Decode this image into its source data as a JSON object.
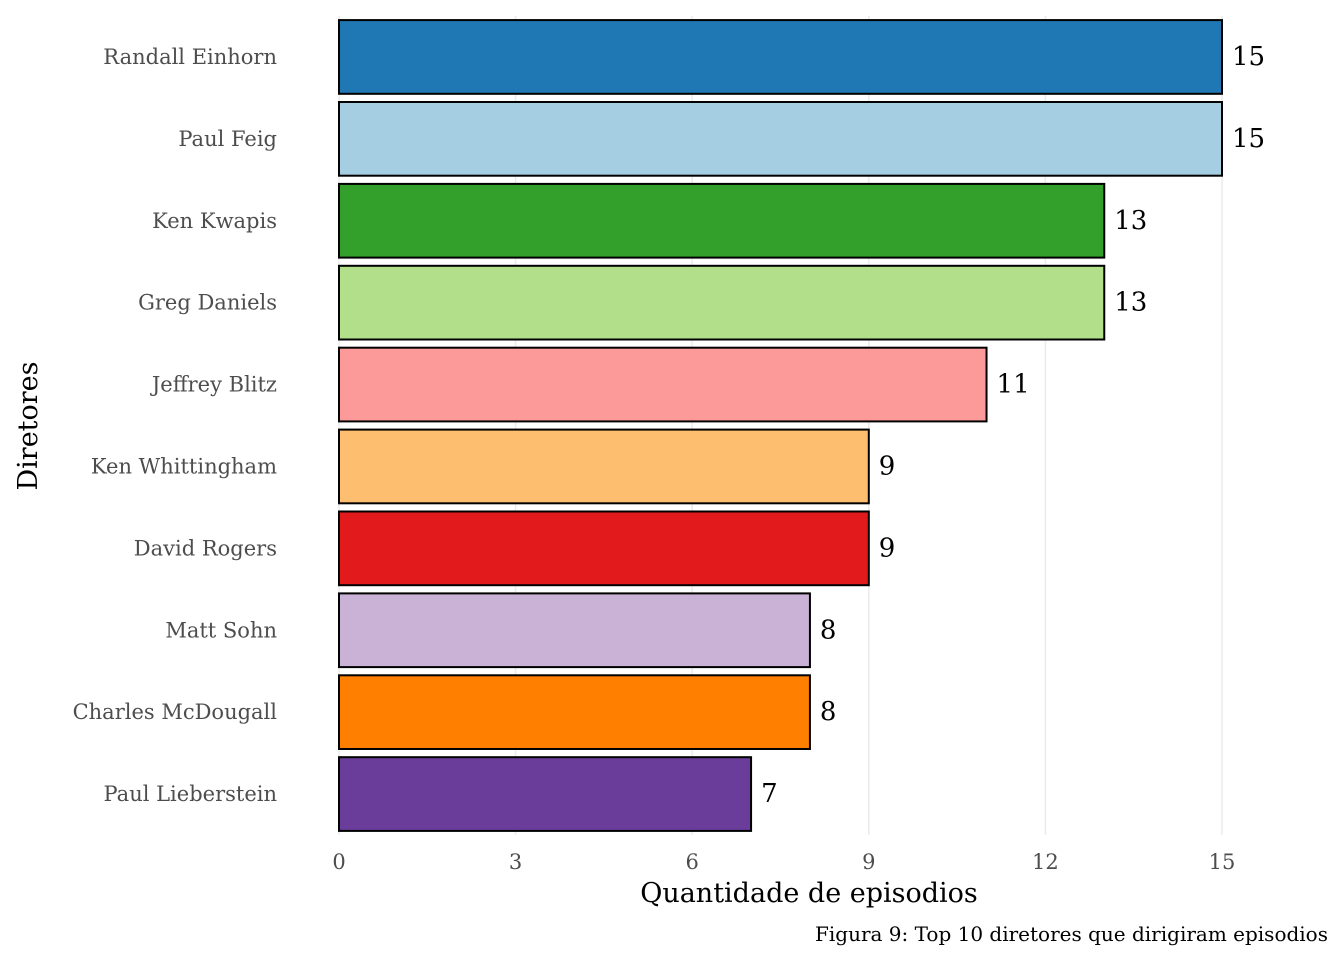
{
  "chart_data": {
    "type": "bar",
    "orientation": "horizontal",
    "categories": [
      "Randall Einhorn",
      "Paul Feig",
      "Ken Kwapis",
      "Greg Daniels",
      "Jeffrey Blitz",
      "Ken Whittingham",
      "David Rogers",
      "Matt Sohn",
      "Charles McDougall",
      "Paul Lieberstein"
    ],
    "values": [
      15,
      15,
      13,
      13,
      11,
      9,
      9,
      8,
      8,
      7
    ],
    "colors": [
      "#1F78B4",
      "#A6CEE3",
      "#33A02C",
      "#B2DF8A",
      "#FB9A99",
      "#FDBF6F",
      "#E31A1C",
      "#CAB2D6",
      "#FF7F00",
      "#6A3D9A"
    ],
    "xlabel": "Quantidade de episodios",
    "ylabel": "Diretores",
    "xlim": [
      0,
      15
    ],
    "xticks": [
      0,
      3,
      6,
      9,
      12,
      15
    ],
    "caption": "Figura 9: Top 10 diretores que dirigiram episodios",
    "grid": "vertical",
    "legend": "none"
  }
}
